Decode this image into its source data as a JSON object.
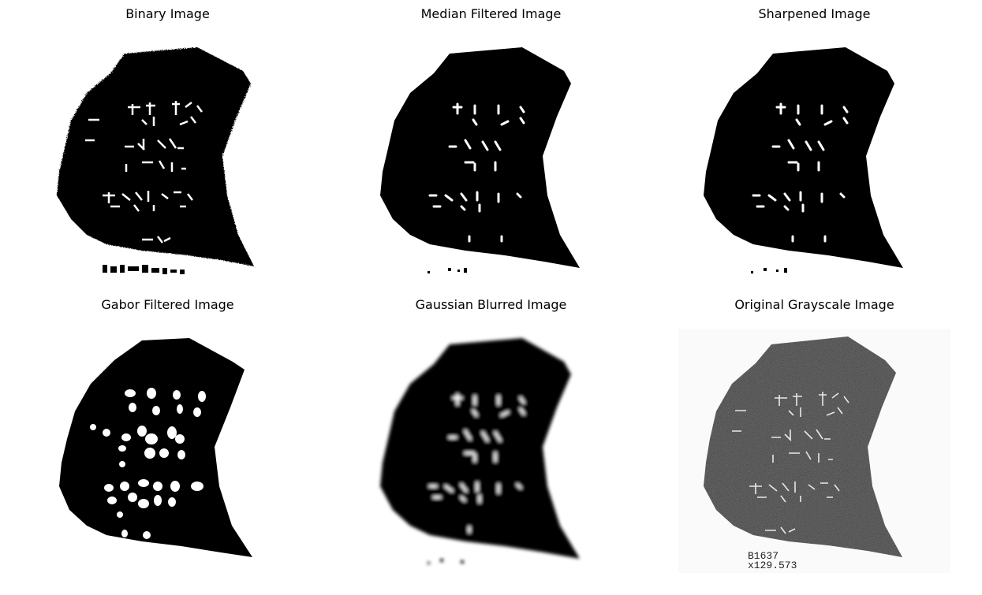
{
  "panels": [
    {
      "title": "Binary Image",
      "style": "binary"
    },
    {
      "title": "Median Filtered Image",
      "style": "median"
    },
    {
      "title": "Sharpened Image",
      "style": "sharpened"
    },
    {
      "title": "Gabor Filtered Image",
      "style": "gabor"
    },
    {
      "title": "Gaussian Blurred Image",
      "style": "gaussian"
    },
    {
      "title": "Original Grayscale Image",
      "style": "grayscale"
    }
  ],
  "specimen_label": {
    "line1": "B1637",
    "line2": "x129.573"
  },
  "colors": {
    "foreground": "#000000",
    "background": "#ffffff",
    "glyph": "#ffffff"
  }
}
